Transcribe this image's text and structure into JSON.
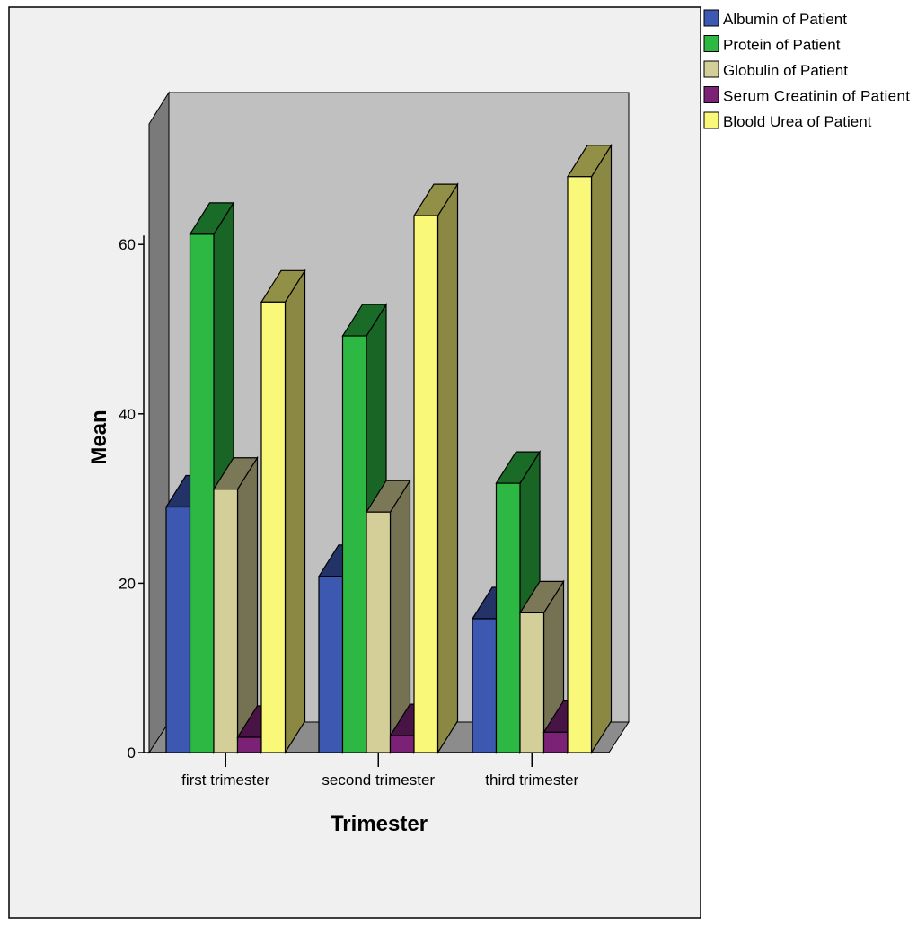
{
  "chart_data": {
    "type": "bar",
    "title": "",
    "xlabel": "Trimester",
    "ylabel": "Mean",
    "categories": [
      "first trimester",
      "second trimester",
      "third trimester"
    ],
    "yticks": [
      "0",
      "20",
      "40",
      "60"
    ],
    "ylim": [
      0,
      60
    ],
    "grid": false,
    "legend_position": "top-right",
    "series": [
      {
        "name": "Albumin of Patient",
        "color": "#3D58B1",
        "values": [
          29,
          20.8,
          15.8
        ]
      },
      {
        "name": "Protein of Patient",
        "color": "#2DB844",
        "values": [
          61.2,
          49.2,
          31.8
        ]
      },
      {
        "name": "Globulin of Patient",
        "color": "#D4CF98",
        "values": [
          31.1,
          28.4,
          16.5
        ]
      },
      {
        "name": "Serum Creatinin of Patient",
        "color": "#7B2277",
        "values": [
          1.8,
          2,
          2.4
        ]
      },
      {
        "name": "Bloold Urea of Patient",
        "color": "#FAF879",
        "values": [
          53.2,
          63.4,
          68
        ]
      }
    ]
  }
}
